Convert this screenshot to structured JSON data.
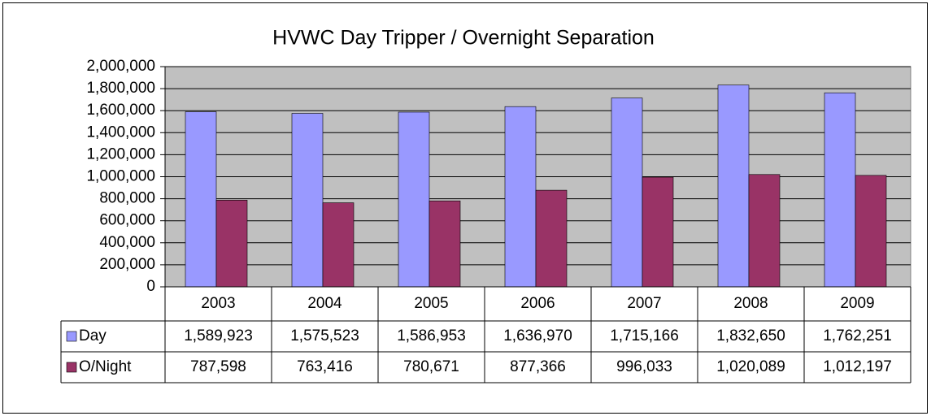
{
  "chart_data": {
    "type": "bar",
    "title": "HVWC Day Tripper / Overnight Separation",
    "categories": [
      "2003",
      "2004",
      "2005",
      "2006",
      "2007",
      "2008",
      "2009"
    ],
    "series": [
      {
        "name": "Day",
        "color": "#9999ff",
        "values": [
          1589923,
          1575523,
          1586953,
          1636970,
          1715166,
          1832650,
          1762251
        ],
        "value_labels": [
          "1,589,923",
          "1,575,523",
          "1,586,953",
          "1,636,970",
          "1,715,166",
          "1,832,650",
          "1,762,251"
        ]
      },
      {
        "name": "O/Night",
        "color": "#993366",
        "values": [
          787598,
          763416,
          780671,
          877366,
          996033,
          1020089,
          1012197
        ],
        "value_labels": [
          "787,598",
          "763,416",
          "780,671",
          "877,366",
          "996,033",
          "1,020,089",
          "1,012,197"
        ]
      }
    ],
    "ylim": [
      0,
      2000000
    ],
    "yticks": [
      0,
      {
        "value": 200000,
        "label": "200,000"
      },
      {
        "value": 400000,
        "label": "400,000"
      },
      {
        "value": 600000,
        "label": "600,000"
      },
      {
        "value": 800000,
        "label": "800,000"
      },
      {
        "value": 1000000,
        "label": "1,000,000"
      },
      {
        "value": 1200000,
        "label": "1,200,000"
      },
      {
        "value": 1400000,
        "label": "1,400,000"
      },
      {
        "value": 1600000,
        "label": "1,600,000"
      },
      {
        "value": 1800000,
        "label": "1,800,000"
      },
      {
        "value": 2000000,
        "label": "2,000,000"
      }
    ],
    "grid": true,
    "plot_background": "#c0c0c0"
  }
}
